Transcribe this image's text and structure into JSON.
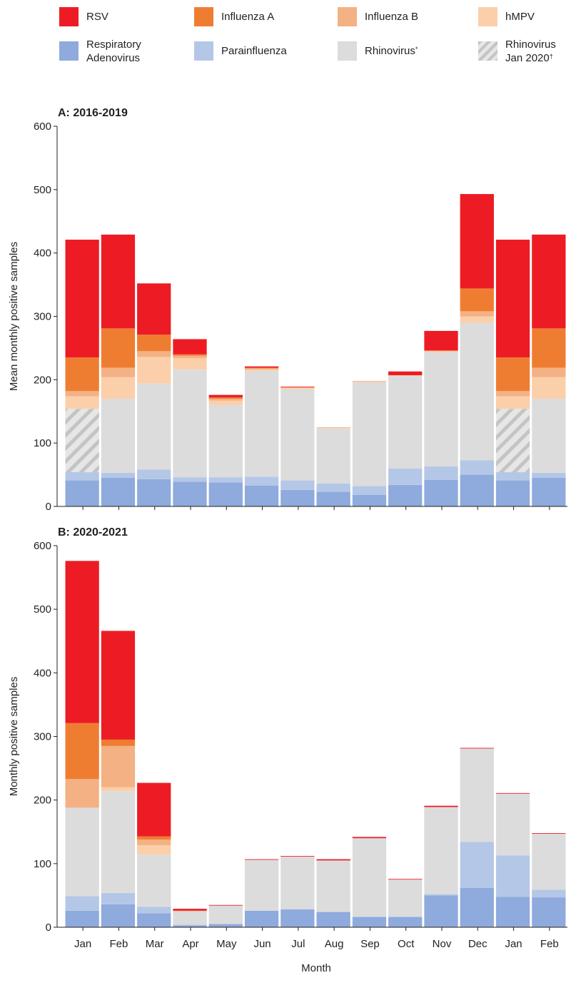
{
  "legend": {
    "items": [
      {
        "key": "rsv",
        "label_lines": [
          "RSV"
        ],
        "color": "#ed1c24"
      },
      {
        "key": "flu_a",
        "label_lines": [
          "Influenza A"
        ],
        "color": "#ef7d31"
      },
      {
        "key": "flu_b",
        "label_lines": [
          "Influenza B"
        ],
        "color": "#f4b183"
      },
      {
        "key": "hmpv",
        "label_lines": [
          "hMPV"
        ],
        "color": "#fbcfaa"
      },
      {
        "key": "adeno",
        "label_lines": [
          "Respiratory",
          "Adenovirus"
        ],
        "color": "#8faadc"
      },
      {
        "key": "para",
        "label_lines": [
          "Parainfluenza"
        ],
        "color": "#b4c7e7"
      },
      {
        "key": "rhino",
        "label_lines": [
          "Rhinovirus"
        ],
        "sup": "*",
        "color": "#dcdcdd"
      },
      {
        "key": "rhino_jan2020",
        "label_lines": [
          "Rhinovirus",
          "Jan 2020"
        ],
        "sup": "†",
        "color": "#d0d0d0",
        "pattern": "diagonal-hatch"
      }
    ]
  },
  "colors": {
    "adeno": "#8faadc",
    "para": "#b4c7e7",
    "rhino": "#dcdcdd",
    "rhino_jan2020": "#d0d0d0",
    "hmpv": "#fbcfaa",
    "flu_b": "#f4b183",
    "flu_a": "#ef7d31",
    "rsv": "#ed1c24",
    "axis": "#231f20"
  },
  "chart_data": [
    {
      "type": "bar",
      "stacked": true,
      "title": "A: 2016-2019",
      "ylabel": "Mean monthly positive samples",
      "xlabel": "",
      "ylim": [
        0,
        600
      ],
      "yticks": [
        0,
        100,
        200,
        300,
        400,
        500,
        600
      ],
      "categories": [
        "Jan",
        "Feb",
        "Mar",
        "Apr",
        "May",
        "Jun",
        "Jul",
        "Aug",
        "Sep",
        "Oct",
        "Nov",
        "Dec",
        "Jan",
        "Feb"
      ],
      "series": [
        {
          "key": "adeno",
          "name": "Respiratory Adenovirus",
          "values": [
            41,
            45,
            43,
            39,
            38,
            33,
            26,
            23,
            18,
            34,
            42,
            50,
            41,
            45
          ]
        },
        {
          "key": "para",
          "name": "Parainfluenza",
          "values": [
            13,
            8,
            15,
            7,
            8,
            14,
            15,
            13,
            14,
            26,
            21,
            23,
            13,
            8
          ]
        },
        {
          "key": "rhino_jan2020",
          "name": "Rhinovirus Jan 2020",
          "values": [
            100,
            0,
            0,
            0,
            0,
            0,
            0,
            0,
            0,
            0,
            0,
            0,
            100,
            0
          ]
        },
        {
          "key": "rhino",
          "name": "Rhinovirus",
          "values": [
            0,
            117,
            136,
            170,
            114,
            167,
            144,
            87,
            164,
            146,
            180,
            217,
            0,
            117
          ]
        },
        {
          "key": "hmpv",
          "name": "hMPV",
          "values": [
            20,
            34,
            42,
            18,
            7,
            2,
            2,
            1,
            1,
            1,
            2,
            10,
            20,
            34
          ]
        },
        {
          "key": "flu_b",
          "name": "Influenza B",
          "values": [
            8,
            15,
            9,
            4,
            3,
            2,
            1,
            1,
            1,
            0,
            1,
            8,
            8,
            15
          ]
        },
        {
          "key": "flu_a",
          "name": "Influenza A",
          "values": [
            53,
            62,
            26,
            2,
            2,
            1,
            0,
            0,
            0,
            0,
            0,
            36,
            53,
            62
          ]
        },
        {
          "key": "rsv",
          "name": "RSV",
          "values": [
            186,
            148,
            81,
            24,
            4,
            2,
            1,
            0,
            0,
            6,
            31,
            149,
            186,
            148
          ]
        }
      ]
    },
    {
      "type": "bar",
      "stacked": true,
      "title": "B: 2020-2021",
      "ylabel": "Monthly positive samples",
      "xlabel": "Month",
      "ylim": [
        0,
        600
      ],
      "yticks": [
        0,
        100,
        200,
        300,
        400,
        500,
        600
      ],
      "categories": [
        "Jan",
        "Feb",
        "Mar",
        "Apr",
        "May",
        "Jun",
        "Jul",
        "Aug",
        "Sep",
        "Oct",
        "Nov",
        "Dec",
        "Jan",
        "Feb"
      ],
      "series": [
        {
          "key": "adeno",
          "name": "Respiratory Adenovirus",
          "values": [
            26,
            36,
            22,
            3,
            5,
            26,
            28,
            24,
            16,
            16,
            50,
            62,
            48,
            47
          ]
        },
        {
          "key": "para",
          "name": "Parainfluenza",
          "values": [
            23,
            18,
            10,
            1,
            0,
            0,
            0,
            0,
            1,
            1,
            2,
            72,
            65,
            12
          ]
        },
        {
          "key": "rhino",
          "name": "Rhinovirus",
          "values": [
            139,
            160,
            82,
            21,
            29,
            80,
            83,
            81,
            123,
            58,
            137,
            147,
            97,
            88
          ]
        },
        {
          "key": "hmpv",
          "name": "hMPV",
          "values": [
            0,
            6,
            15,
            0,
            0,
            0,
            0,
            0,
            0,
            0,
            0,
            0,
            0,
            0
          ]
        },
        {
          "key": "flu_b",
          "name": "Influenza B",
          "values": [
            45,
            65,
            9,
            1,
            0,
            0,
            0,
            0,
            0,
            0,
            0,
            0,
            0,
            0
          ]
        },
        {
          "key": "flu_a",
          "name": "Influenza A",
          "values": [
            88,
            10,
            5,
            0,
            0,
            0,
            0,
            0,
            0,
            0,
            0,
            0,
            0,
            0
          ]
        },
        {
          "key": "rsv",
          "name": "RSV",
          "values": [
            255,
            171,
            84,
            3,
            1,
            1,
            1,
            2,
            2,
            1,
            2,
            1,
            1,
            1
          ]
        }
      ]
    }
  ]
}
